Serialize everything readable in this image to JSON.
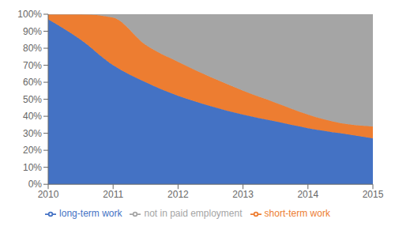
{
  "chart_data": {
    "type": "area",
    "stacked": true,
    "grid": false,
    "legend": "bottom",
    "x": [
      2010,
      2010.5,
      2011,
      2011.5,
      2012,
      2012.5,
      2013,
      2013.5,
      2014,
      2014.5,
      2015
    ],
    "series": [
      {
        "name": "long-term work",
        "color": "#4472C4",
        "values": [
          0.97,
          0.85,
          0.7,
          0.6,
          0.52,
          0.46,
          0.41,
          0.37,
          0.33,
          0.3,
          0.27
        ]
      },
      {
        "name": "short-term work",
        "color": "#ED7D31",
        "values": [
          0.03,
          0.15,
          0.28,
          0.22,
          0.2,
          0.17,
          0.14,
          0.11,
          0.08,
          0.06,
          0.07
        ]
      },
      {
        "name": "not in paid employment",
        "color": "#A5A5A5",
        "values": [
          0,
          0,
          0.02,
          0.18,
          0.28,
          0.37,
          0.45,
          0.52,
          0.59,
          0.64,
          0.66
        ]
      }
    ],
    "xlim": [
      2010,
      2015
    ],
    "xticks": [
      2010,
      2011,
      2012,
      2013,
      2014,
      2015
    ],
    "ylim": [
      0,
      1
    ],
    "yticks": [
      {
        "value": 0,
        "label": "0%"
      },
      {
        "value": 0.1,
        "label": "10%"
      },
      {
        "value": 0.2,
        "label": "20%"
      },
      {
        "value": 0.3,
        "label": "30%"
      },
      {
        "value": 0.4,
        "label": "40%"
      },
      {
        "value": 0.5,
        "label": "50%"
      },
      {
        "value": 0.6,
        "label": "60%"
      },
      {
        "value": 0.7,
        "label": "70%"
      },
      {
        "value": 0.8,
        "label": "80%"
      },
      {
        "value": 0.9,
        "label": "90%"
      },
      {
        "value": 1.0,
        "label": "100%"
      }
    ]
  }
}
